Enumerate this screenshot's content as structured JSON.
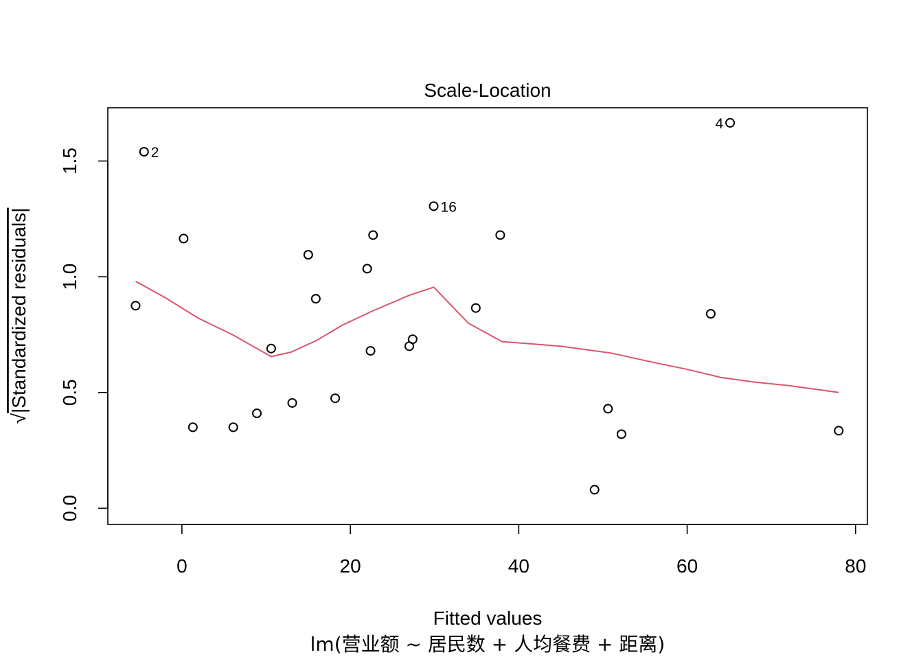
{
  "chart_data": {
    "type": "scatter",
    "title": "Scale-Location",
    "xlabel": "Fitted values",
    "ylabel": "√|Standardized residuals|",
    "ylabel_radical": "√",
    "ylabel_text": "|Standardized residuals|",
    "subtitle": "lm(营业额 ~ 居民数 + 人均餐费 + 距离)",
    "xlim": [
      -8.8,
      81.4
    ],
    "ylim": [
      -0.07,
      1.73
    ],
    "xticks": [
      0,
      20,
      40,
      60,
      80
    ],
    "xtick_labels": [
      "0",
      "20",
      "40",
      "60",
      "80"
    ],
    "yticks": [
      0.0,
      0.5,
      1.0,
      1.5
    ],
    "ytick_labels": [
      "0.0",
      "0.5",
      "1.0",
      "1.5"
    ],
    "grid": false,
    "points": [
      {
        "x": -5.5,
        "y": 0.875
      },
      {
        "x": -4.5,
        "y": 1.54,
        "label": "2",
        "label_side": "right"
      },
      {
        "x": 0.2,
        "y": 1.165
      },
      {
        "x": 1.3,
        "y": 0.35
      },
      {
        "x": 6.1,
        "y": 0.35
      },
      {
        "x": 8.9,
        "y": 0.41
      },
      {
        "x": 10.6,
        "y": 0.69
      },
      {
        "x": 13.1,
        "y": 0.455
      },
      {
        "x": 15.0,
        "y": 1.095
      },
      {
        "x": 15.9,
        "y": 0.905
      },
      {
        "x": 18.2,
        "y": 0.475
      },
      {
        "x": 22.0,
        "y": 1.035
      },
      {
        "x": 22.4,
        "y": 0.68
      },
      {
        "x": 22.7,
        "y": 1.18
      },
      {
        "x": 27.0,
        "y": 0.7
      },
      {
        "x": 27.4,
        "y": 0.73
      },
      {
        "x": 29.9,
        "y": 1.305,
        "label": "16",
        "label_side": "right"
      },
      {
        "x": 34.9,
        "y": 0.865
      },
      {
        "x": 37.8,
        "y": 1.18
      },
      {
        "x": 49.0,
        "y": 0.08
      },
      {
        "x": 50.6,
        "y": 0.43
      },
      {
        "x": 52.2,
        "y": 0.32
      },
      {
        "x": 62.8,
        "y": 0.84
      },
      {
        "x": 65.1,
        "y": 1.665,
        "label": "4",
        "label_side": "left"
      },
      {
        "x": 78.0,
        "y": 0.335
      }
    ],
    "smoother": {
      "color": "#DF536B",
      "x": [
        -5.5,
        -2,
        2,
        6,
        10.6,
        13,
        16,
        19,
        22.5,
        27,
        29.9,
        34,
        38,
        45,
        51,
        56,
        60,
        64,
        68,
        72,
        78
      ],
      "y": [
        0.98,
        0.91,
        0.82,
        0.75,
        0.655,
        0.675,
        0.725,
        0.79,
        0.85,
        0.92,
        0.955,
        0.8,
        0.72,
        0.7,
        0.67,
        0.63,
        0.6,
        0.565,
        0.545,
        0.53,
        0.5
      ]
    }
  }
}
